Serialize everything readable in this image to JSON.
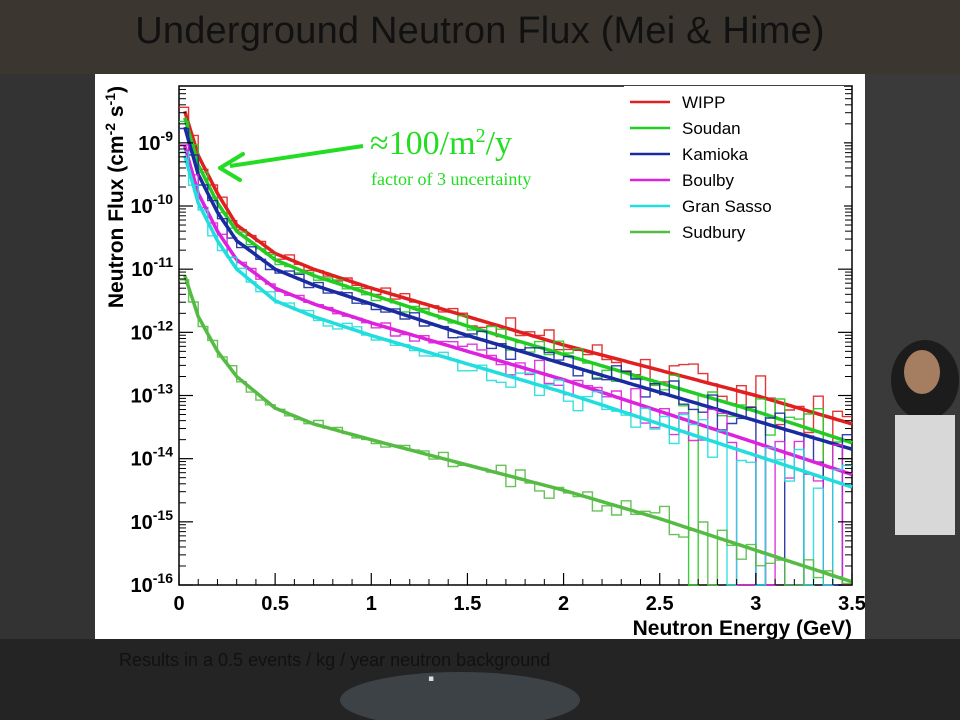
{
  "slide": {
    "title": "Underground Neutron Flux (Mei & Hime)",
    "caption": "Results in a 0.5 events / kg / year neutron background",
    "tiny_mark": "▪"
  },
  "chart_data": {
    "type": "line",
    "title": "",
    "xlabel": "Neutron Energy (GeV)",
    "ylabel": "Neutron Flux (cm-2 s-1)",
    "ylabel_parts": {
      "base": "Neutron Flux (cm",
      "exp1": "-2",
      "mid": " s",
      "exp2": "-1",
      "end": ")"
    },
    "xlim": [
      0,
      3.5
    ],
    "ylim_log10": [
      -16,
      -8.1
    ],
    "y_scale": "log",
    "x_ticks": [
      0,
      0.5,
      1,
      1.5,
      2,
      2.5,
      3,
      3.5
    ],
    "x_tick_labels": [
      "0",
      "0.5",
      "1",
      "1.5",
      "2",
      "2.5",
      "3",
      "3.5"
    ],
    "y_ticks": [
      {
        "base": "10",
        "exp": "-9",
        "log": -9
      },
      {
        "base": "10",
        "exp": "-10",
        "log": -10
      },
      {
        "base": "10",
        "exp": "-11",
        "log": -11
      },
      {
        "base": "10",
        "exp": "-12",
        "log": -12
      },
      {
        "base": "10",
        "exp": "-13",
        "log": -13
      },
      {
        "base": "10",
        "exp": "-14",
        "log": -14
      },
      {
        "base": "10",
        "exp": "-15",
        "log": -15
      },
      {
        "base": "10",
        "exp": "-16",
        "log": -16
      }
    ],
    "legend_position": "top-right",
    "series": [
      {
        "name": "WIPP",
        "color": "#e02020",
        "x": [
          0.03,
          0.1,
          0.2,
          0.3,
          0.5,
          0.7,
          1.0,
          1.5,
          2.0,
          2.5,
          3.0,
          3.5
        ],
        "y_log10": [
          -8.5,
          -9.2,
          -9.8,
          -10.3,
          -10.75,
          -11.0,
          -11.3,
          -11.75,
          -12.2,
          -12.6,
          -13.0,
          -13.45
        ]
      },
      {
        "name": "Soudan",
        "color": "#22cc22",
        "x": [
          0.03,
          0.1,
          0.2,
          0.3,
          0.5,
          0.7,
          1.0,
          1.5,
          2.0,
          2.5,
          3.0,
          3.5
        ],
        "y_log10": [
          -8.6,
          -9.35,
          -9.95,
          -10.4,
          -10.85,
          -11.1,
          -11.4,
          -11.9,
          -12.35,
          -12.8,
          -13.25,
          -13.75
        ]
      },
      {
        "name": "Kamioka",
        "color": "#1a2aa0",
        "x": [
          0.03,
          0.1,
          0.2,
          0.3,
          0.5,
          0.7,
          1.0,
          1.5,
          2.0,
          2.5,
          3.0,
          3.5
        ],
        "y_log10": [
          -8.75,
          -9.5,
          -10.1,
          -10.55,
          -11.0,
          -11.25,
          -11.55,
          -12.05,
          -12.5,
          -12.95,
          -13.4,
          -13.85
        ]
      },
      {
        "name": "Boulby",
        "color": "#dd22dd",
        "x": [
          0.03,
          0.1,
          0.2,
          0.3,
          0.5,
          0.7,
          1.0,
          1.5,
          2.0,
          2.5,
          3.0,
          3.5
        ],
        "y_log10": [
          -9.05,
          -9.8,
          -10.4,
          -10.85,
          -11.3,
          -11.55,
          -11.85,
          -12.3,
          -12.75,
          -13.25,
          -13.75,
          -14.25
        ]
      },
      {
        "name": "Gran Sasso",
        "color": "#22dddd",
        "x": [
          0.03,
          0.1,
          0.2,
          0.3,
          0.5,
          0.7,
          1.0,
          1.5,
          2.0,
          2.5,
          3.0,
          3.5
        ],
        "y_log10": [
          -9.2,
          -9.95,
          -10.55,
          -11.0,
          -11.5,
          -11.75,
          -12.05,
          -12.5,
          -12.95,
          -13.45,
          -13.95,
          -14.45
        ]
      },
      {
        "name": "Sudbury",
        "color": "#55bb44",
        "x": [
          0.03,
          0.1,
          0.2,
          0.3,
          0.5,
          0.7,
          1.0,
          1.5,
          2.0,
          2.5,
          3.0,
          3.5
        ],
        "y_log10": [
          -11.1,
          -11.75,
          -12.3,
          -12.7,
          -13.2,
          -13.45,
          -13.7,
          -14.1,
          -14.5,
          -14.95,
          -15.45,
          -15.95
        ]
      }
    ],
    "annotations": [
      {
        "text": "≈100/m",
        "sup": "2",
        "end": "/y",
        "color": "#22dd22"
      },
      {
        "text": "factor of 3 uncertainty",
        "color": "#22dd22"
      }
    ]
  }
}
